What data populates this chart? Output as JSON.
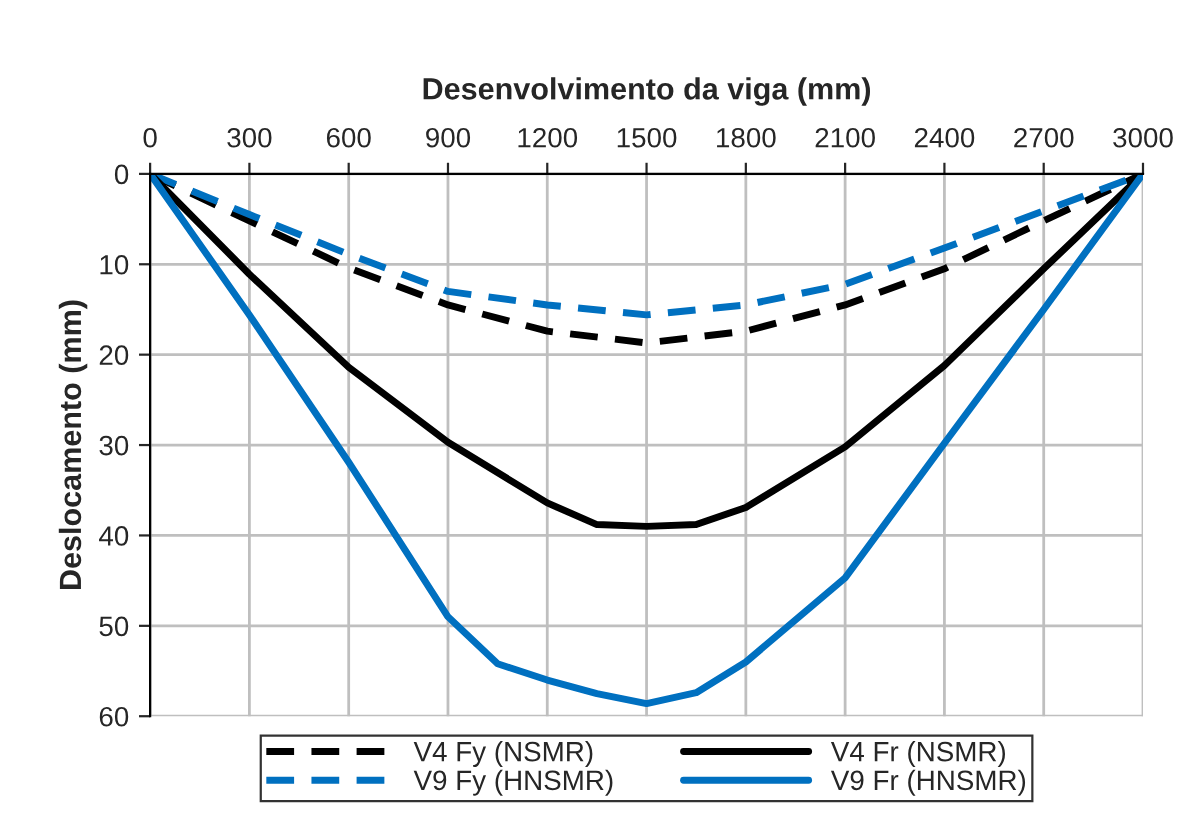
{
  "chart_data": {
    "type": "line",
    "xlabel": "Desenvolvimento da viga (mm)",
    "ylabel": "Deslocamento (mm)",
    "xlim": [
      0,
      3000
    ],
    "xticks": [
      0,
      300,
      600,
      900,
      1200,
      1500,
      1800,
      2100,
      2400,
      2700,
      3000
    ],
    "ylim": [
      60,
      0
    ],
    "yticks": [
      0,
      10,
      20,
      30,
      40,
      50,
      60
    ],
    "grid": true,
    "legend": "bottom",
    "marker": "none",
    "series": [
      {
        "name": "V4 Fy (NSMR)",
        "color": "#000000",
        "line_style": "dashed",
        "x": [
          0,
          300,
          600,
          900,
          1200,
          1500,
          1800,
          2100,
          2400,
          2700,
          3000
        ],
        "values": [
          0,
          5.2,
          10.4,
          14.5,
          17.4,
          18.7,
          17.4,
          14.5,
          10.5,
          5.2,
          0
        ]
      },
      {
        "name": "V9 Fy (HNSMR)",
        "color": "#0070c0",
        "line_style": "dashed",
        "x": [
          0,
          300,
          600,
          900,
          1200,
          1500,
          1800,
          2100,
          2400,
          2700,
          3000
        ],
        "values": [
          0,
          4.5,
          8.9,
          13.0,
          14.5,
          15.6,
          14.5,
          12.2,
          8.2,
          4.1,
          0
        ]
      },
      {
        "name": "V4 Fr (NSMR)",
        "color": "#000000",
        "line_style": "solid",
        "x": [
          0,
          300,
          600,
          900,
          1200,
          1350,
          1500,
          1650,
          1800,
          2100,
          2400,
          2700,
          3000
        ],
        "values": [
          0,
          11.1,
          21.4,
          29.7,
          36.4,
          38.8,
          39.0,
          38.8,
          36.9,
          30.2,
          21.2,
          10.5,
          0
        ]
      },
      {
        "name": "V9 Fr (HNSMR)",
        "color": "#0070c0",
        "line_style": "solid",
        "x": [
          0,
          300,
          600,
          900,
          1050,
          1200,
          1350,
          1500,
          1650,
          1800,
          2100,
          2400,
          2700,
          3000
        ],
        "values": [
          0,
          15.6,
          31.9,
          49.0,
          54.2,
          56.0,
          57.5,
          58.6,
          57.4,
          54.0,
          44.7,
          29.8,
          15.0,
          0
        ]
      }
    ]
  }
}
